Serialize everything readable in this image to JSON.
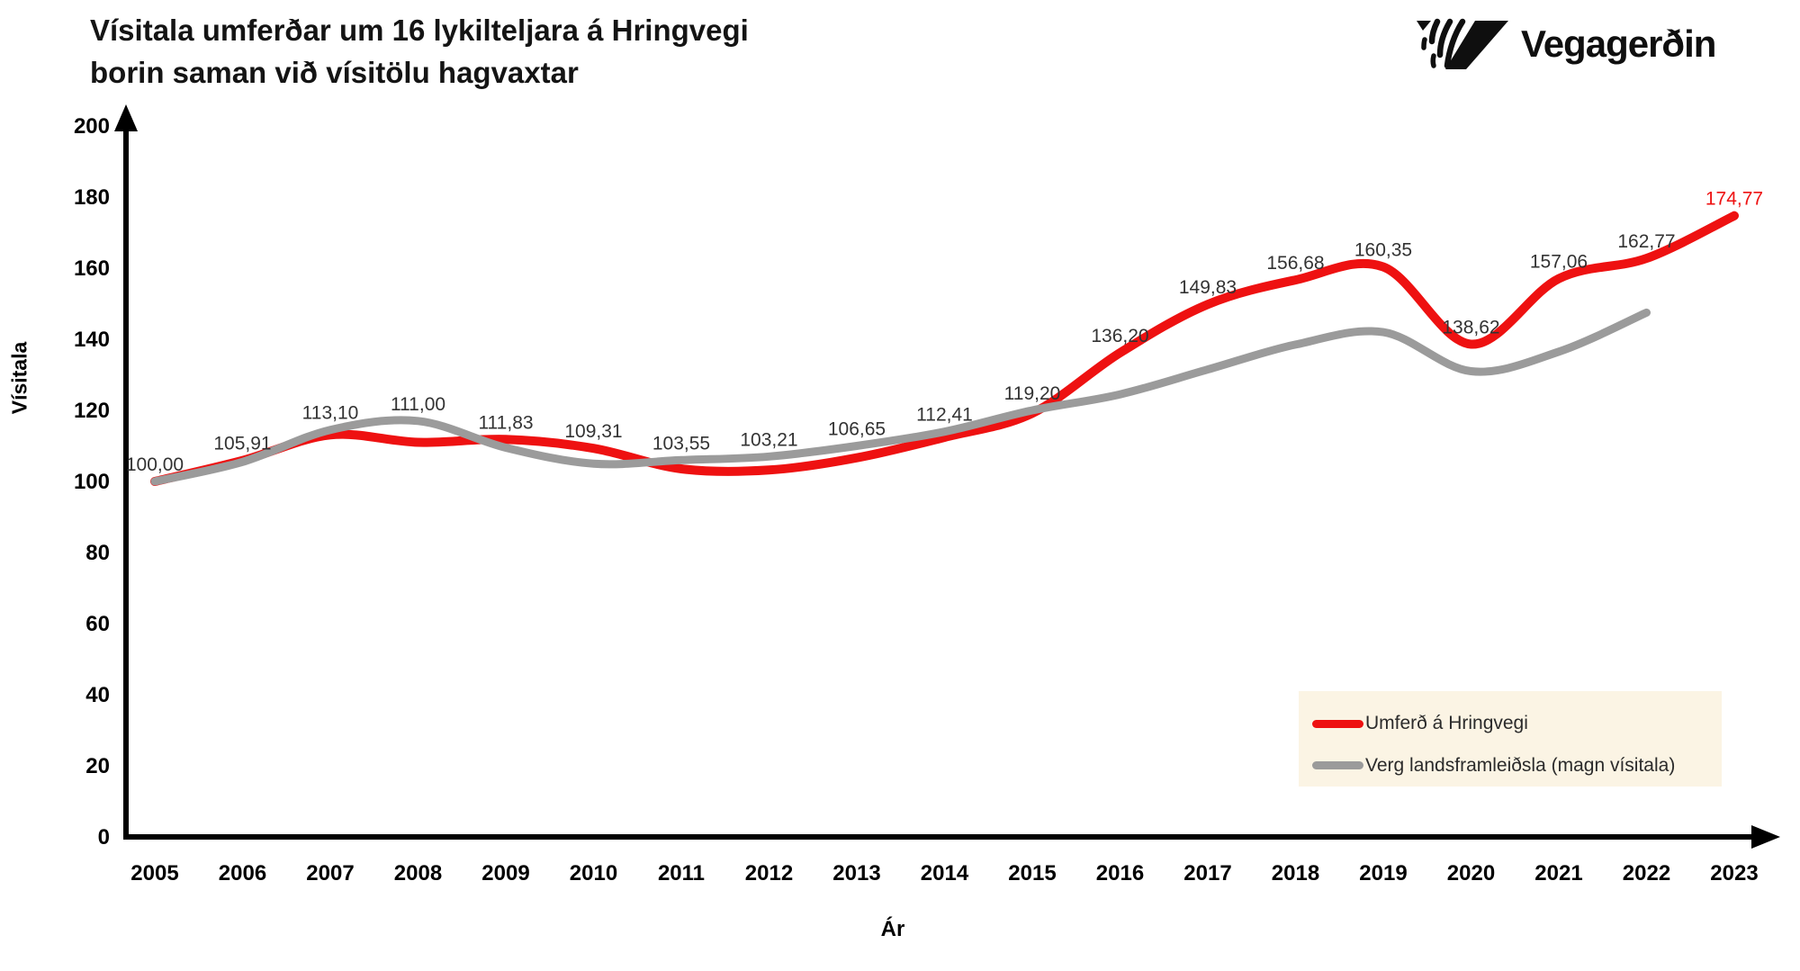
{
  "header": {
    "title_line1": "Vísitala umferðar um 16 lykilteljara á Hringvegi",
    "title_line2": "borin saman við vísitölu hagvaxtar",
    "logo_text": "Vegagerðin"
  },
  "chart_data": {
    "type": "line",
    "title": "Vísitala umferðar um 16 lykilteljara á Hringvegi borin saman við vísitölu hagvaxtar",
    "xlabel": "Ár",
    "ylabel": "Vísitala",
    "ylim": [
      0,
      200
    ],
    "yticks": [
      0,
      20,
      40,
      60,
      80,
      100,
      120,
      140,
      160,
      180,
      200
    ],
    "grid": false,
    "legend_position": "bottom-right",
    "x": [
      2005,
      2006,
      2007,
      2008,
      2009,
      2010,
      2011,
      2012,
      2013,
      2014,
      2015,
      2016,
      2017,
      2018,
      2019,
      2020,
      2021,
      2022,
      2023
    ],
    "series": [
      {
        "name": "Umferð á Hringvegi",
        "color": "#ee1111",
        "values": [
          100.0,
          105.91,
          113.1,
          111.0,
          111.83,
          109.31,
          103.55,
          103.21,
          106.65,
          112.41,
          119.2,
          136.2,
          149.83,
          156.68,
          160.35,
          138.62,
          157.06,
          162.77,
          174.77
        ],
        "point_labels": [
          "100,00",
          "105,91",
          "113,10",
          "111,00",
          "111,83",
          "109,31",
          "103,55",
          "103,21",
          "106,65",
          "112,41",
          "119,20",
          "136,20",
          "149,83",
          "156,68",
          "160,35",
          "138,62",
          "157,06",
          "162,77",
          "174,77"
        ]
      },
      {
        "name": "Verg landsframleiðsla (magn vísitala)",
        "color": "#9b9b9b",
        "values": [
          100,
          105.5,
          114.5,
          117,
          109.5,
          105,
          106,
          107,
          110,
          114,
          120,
          124.5,
          131.5,
          138.5,
          142,
          131,
          136.5,
          147.5
        ]
      }
    ]
  },
  "styles": {
    "accent_red": "#ee1111",
    "line_gray": "#9b9b9b",
    "label_color": "#333333",
    "axis_color": "#000000",
    "legend_bg": "#fbf4e4",
    "background": "#ffffff"
  }
}
